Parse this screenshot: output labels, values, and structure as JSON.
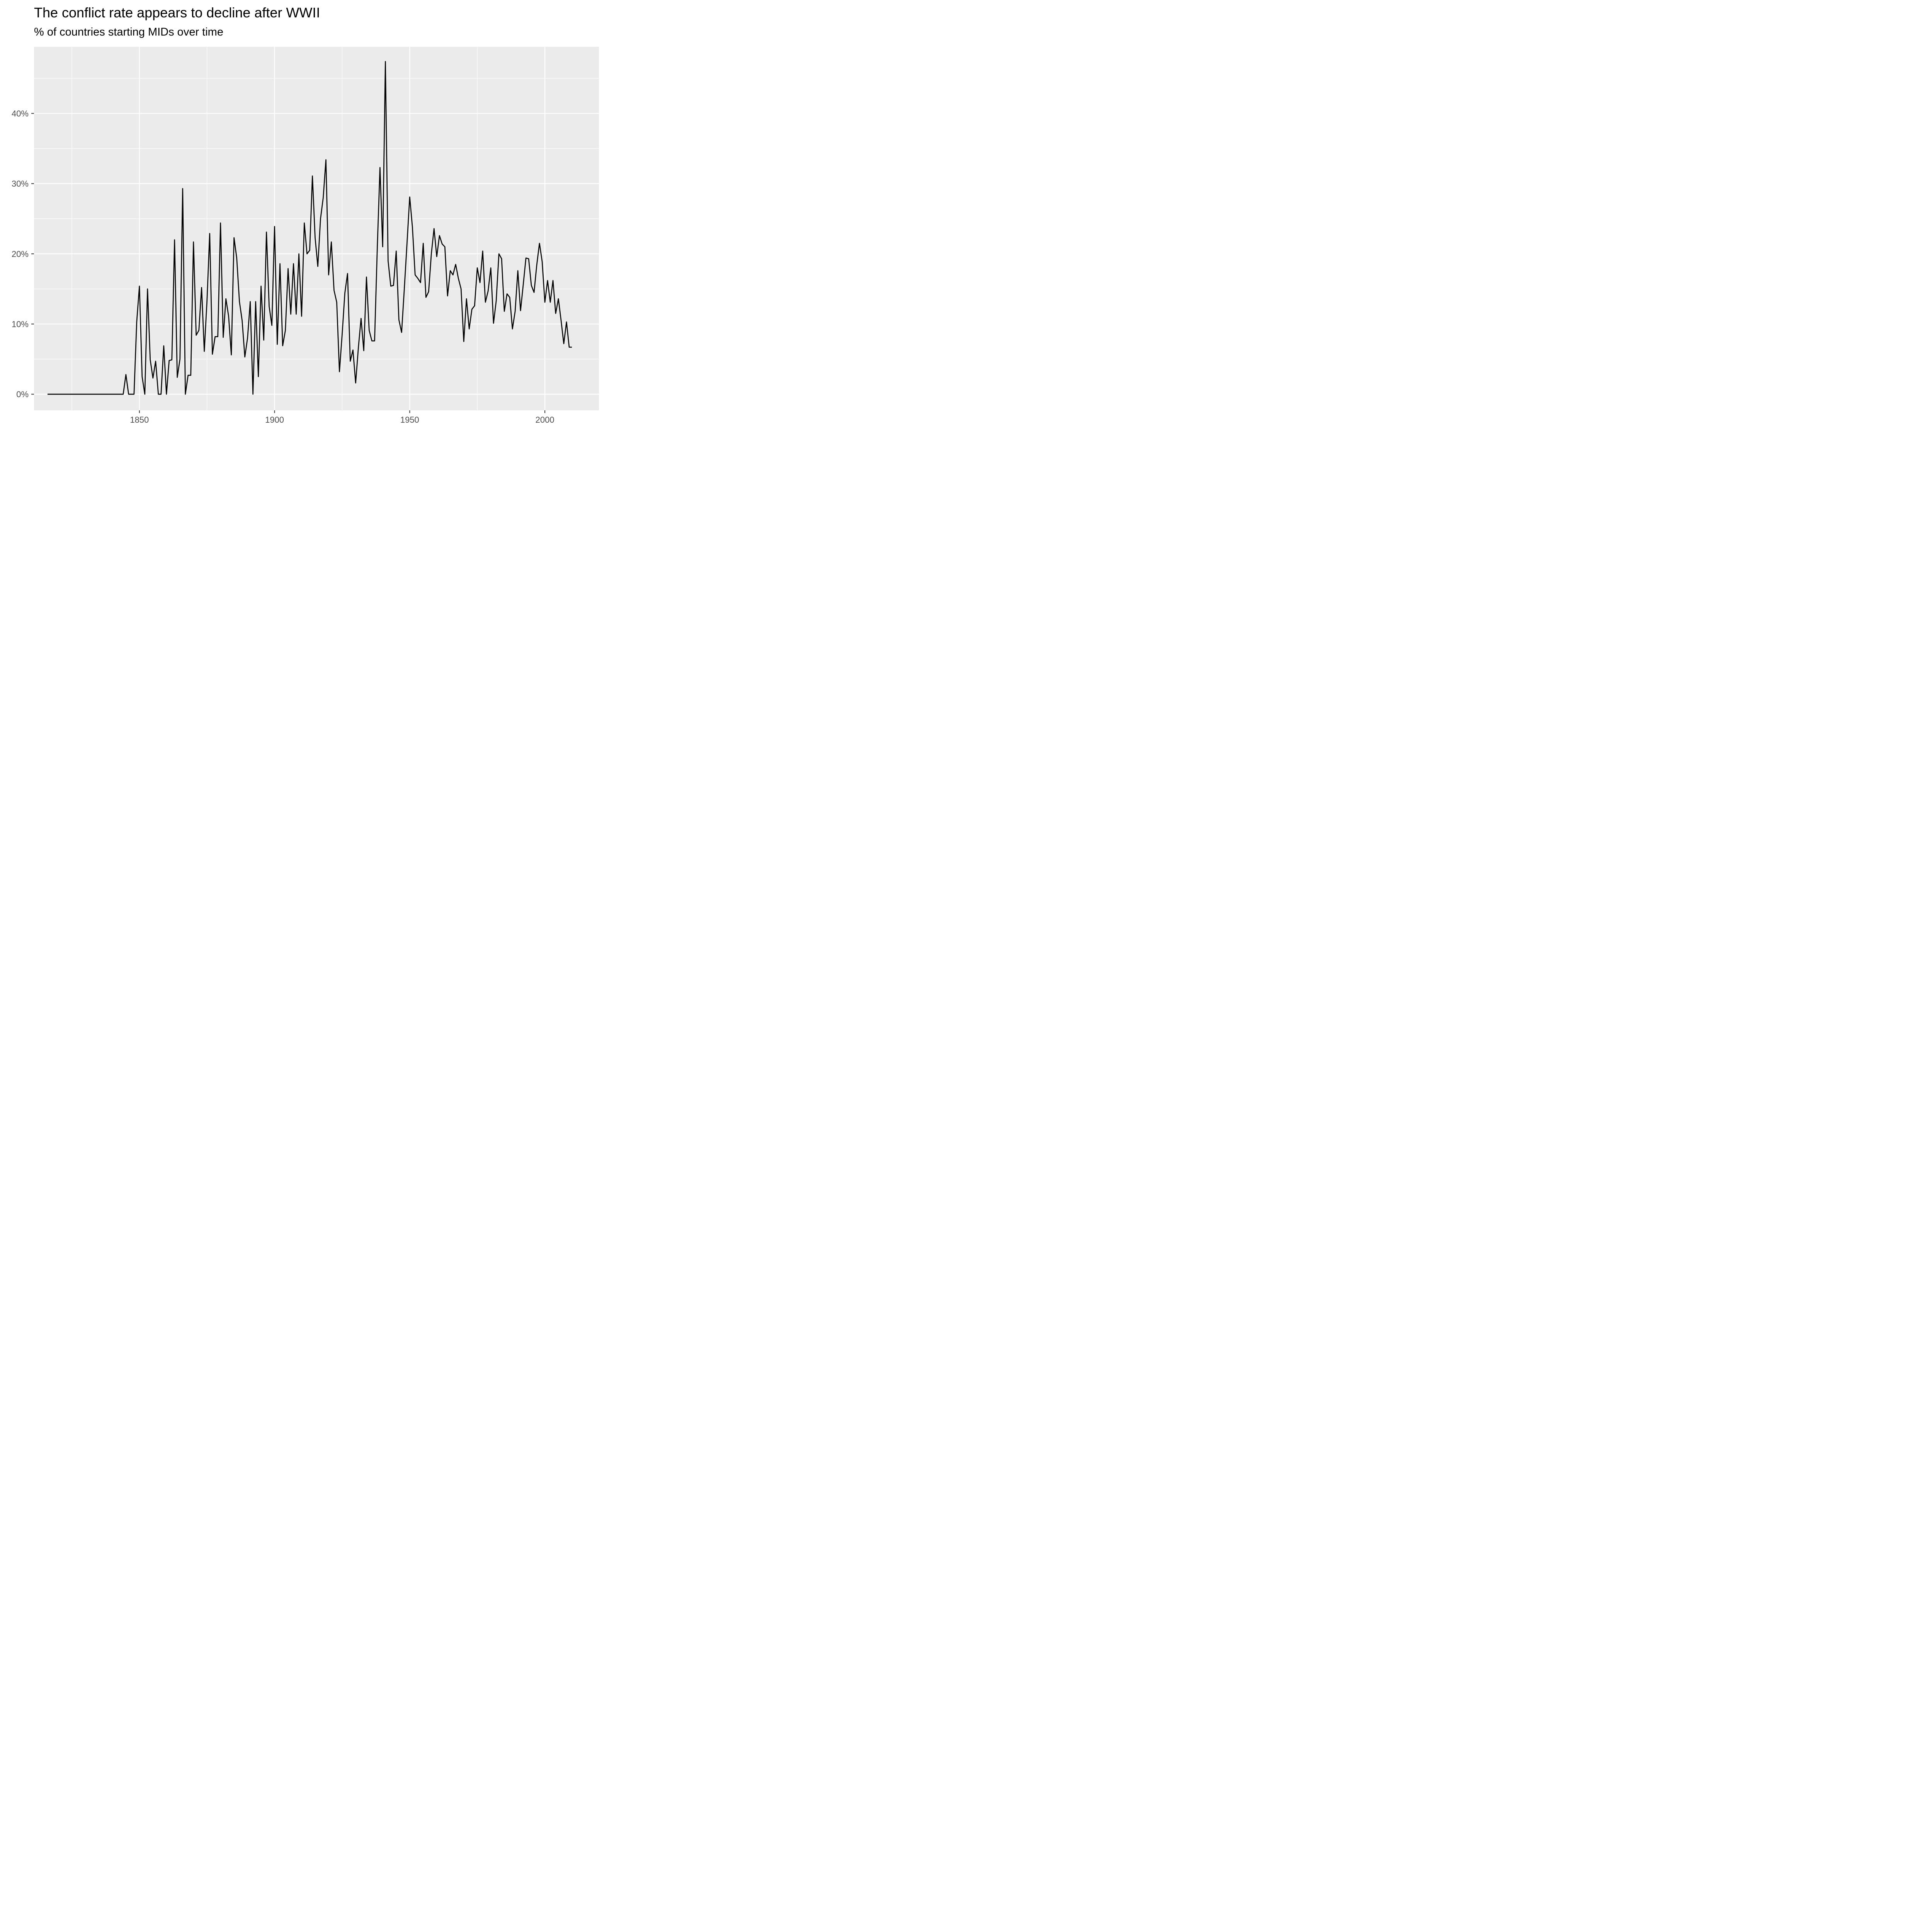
{
  "chart_data": {
    "type": "line",
    "title": "The conflict rate appears to decline after WWII",
    "subtitle": "% of countries starting MIDs over time",
    "xlabel": "",
    "ylabel": "",
    "xlim": [
      1811,
      2020
    ],
    "ylim": [
      -2.3,
      49.5
    ],
    "x_ticks": [
      1850,
      1900,
      1950,
      2000
    ],
    "x_tick_labels": [
      "1850",
      "1900",
      "1950",
      "2000"
    ],
    "y_ticks": [
      0,
      10,
      20,
      30,
      40
    ],
    "y_tick_labels": [
      "0%",
      "10%",
      "20%",
      "30%",
      "40%"
    ],
    "grid": true,
    "legend": "none",
    "colors": {
      "panel": "#ebebeb",
      "grid": "#ffffff",
      "line": "#000000",
      "tick_text": "#4d4d4d"
    },
    "series": [
      {
        "x": [
          1816,
          1817,
          1818,
          1819,
          1820,
          1821,
          1822,
          1823,
          1824,
          1825,
          1826,
          1827,
          1828,
          1829,
          1830,
          1831,
          1832,
          1833,
          1834,
          1835,
          1836,
          1837,
          1838,
          1839,
          1840,
          1841,
          1842,
          1843,
          1844,
          1845,
          1846,
          1847,
          1848,
          1849,
          1850,
          1851,
          1852,
          1853,
          1854,
          1855,
          1856,
          1857,
          1858,
          1859,
          1860,
          1861,
          1862,
          1863,
          1864,
          1865,
          1866,
          1867,
          1868,
          1869,
          1870,
          1871,
          1872,
          1873,
          1874,
          1875,
          1876,
          1877,
          1878,
          1879,
          1880,
          1881,
          1882,
          1883,
          1884,
          1885,
          1886,
          1887,
          1888,
          1889,
          1890,
          1891,
          1892,
          1893,
          1894,
          1895,
          1896,
          1897,
          1898,
          1899,
          1900,
          1901,
          1902,
          1903,
          1904,
          1905,
          1906,
          1907,
          1908,
          1909,
          1910,
          1911,
          1912,
          1913,
          1914,
          1915,
          1916,
          1917,
          1918,
          1919,
          1920,
          1921,
          1922,
          1923,
          1924,
          1925,
          1926,
          1927,
          1928,
          1929,
          1930,
          1931,
          1932,
          1933,
          1934,
          1935,
          1936,
          1937,
          1938,
          1939,
          1940,
          1941,
          1942,
          1943,
          1944,
          1945,
          1946,
          1947,
          1948,
          1949,
          1950,
          1951,
          1952,
          1953,
          1954,
          1955,
          1956,
          1957,
          1958,
          1959,
          1960,
          1961,
          1962,
          1963,
          1964,
          1965,
          1966,
          1967,
          1968,
          1969,
          1970,
          1971,
          1972,
          1973,
          1974,
          1975,
          1976,
          1977,
          1978,
          1979,
          1980,
          1981,
          1982,
          1983,
          1984,
          1985,
          1986,
          1987,
          1988,
          1989,
          1990,
          1991,
          1992,
          1993,
          1994,
          1995,
          1996,
          1997,
          1998,
          1999,
          2000,
          2001,
          2002,
          2003,
          2004,
          2005,
          2006,
          2007,
          2008,
          2009,
          2010
        ],
        "values": [
          0,
          0,
          0,
          0,
          0,
          0,
          0,
          0,
          0,
          0,
          0,
          0,
          0,
          0,
          0,
          0,
          0,
          0,
          0,
          0,
          0,
          0,
          0,
          0,
          0,
          0,
          0,
          0,
          0,
          2.8,
          0,
          0,
          0,
          10.3,
          15.4,
          2.5,
          0,
          15,
          4.9,
          2.3,
          4.7,
          0,
          0,
          6.9,
          0,
          4.8,
          4.9,
          22,
          2.4,
          5,
          29.3,
          0,
          2.7,
          2.7,
          21.7,
          8.4,
          9.1,
          15.2,
          6.1,
          13.3,
          22.9,
          5.7,
          8.2,
          8.2,
          24.4,
          8.1,
          13.6,
          11.1,
          5.6,
          22.3,
          19.4,
          13.2,
          10.5,
          5.3,
          8,
          13.2,
          0,
          13.2,
          2.5,
          15.4,
          7.7,
          23.1,
          12.5,
          9.8,
          23.9,
          7.1,
          18.6,
          6.9,
          9.1,
          17.9,
          11.4,
          18.6,
          11.4,
          20,
          11.1,
          24.4,
          20,
          20.5,
          31.1,
          22.3,
          18.2,
          25,
          28,
          33.4,
          17,
          21.7,
          14.8,
          13.1,
          3.2,
          8.5,
          14.4,
          17.2,
          4.7,
          6.3,
          1.6,
          6.6,
          10.8,
          6.2,
          16.7,
          9.1,
          7.6,
          7.6,
          20.8,
          32.3,
          21,
          47.4,
          19,
          15.4,
          15.5,
          20.4,
          10.6,
          8.8,
          15,
          21.5,
          28.1,
          23.8,
          17,
          16.5,
          15.9,
          21.5,
          13.8,
          14.6,
          20,
          23.6,
          19.6,
          22.6,
          21.4,
          21,
          14,
          17.6,
          17,
          18.5,
          16.5,
          15,
          7.5,
          13.6,
          9.3,
          12.1,
          12.6,
          18,
          15.9,
          20.4,
          13.1,
          14.7,
          18,
          10.1,
          13.3,
          20,
          19.3,
          11.8,
          14.3,
          13.8,
          9.3,
          11.8,
          17.6,
          11.9,
          15.6,
          19.4,
          19.3,
          15.5,
          14.5,
          18.4,
          21.5,
          18.9,
          13.1,
          16.2,
          13.1,
          16.2,
          11.5,
          13.6,
          10.5,
          7.2,
          10.3,
          6.7,
          6.7
        ]
      }
    ]
  }
}
